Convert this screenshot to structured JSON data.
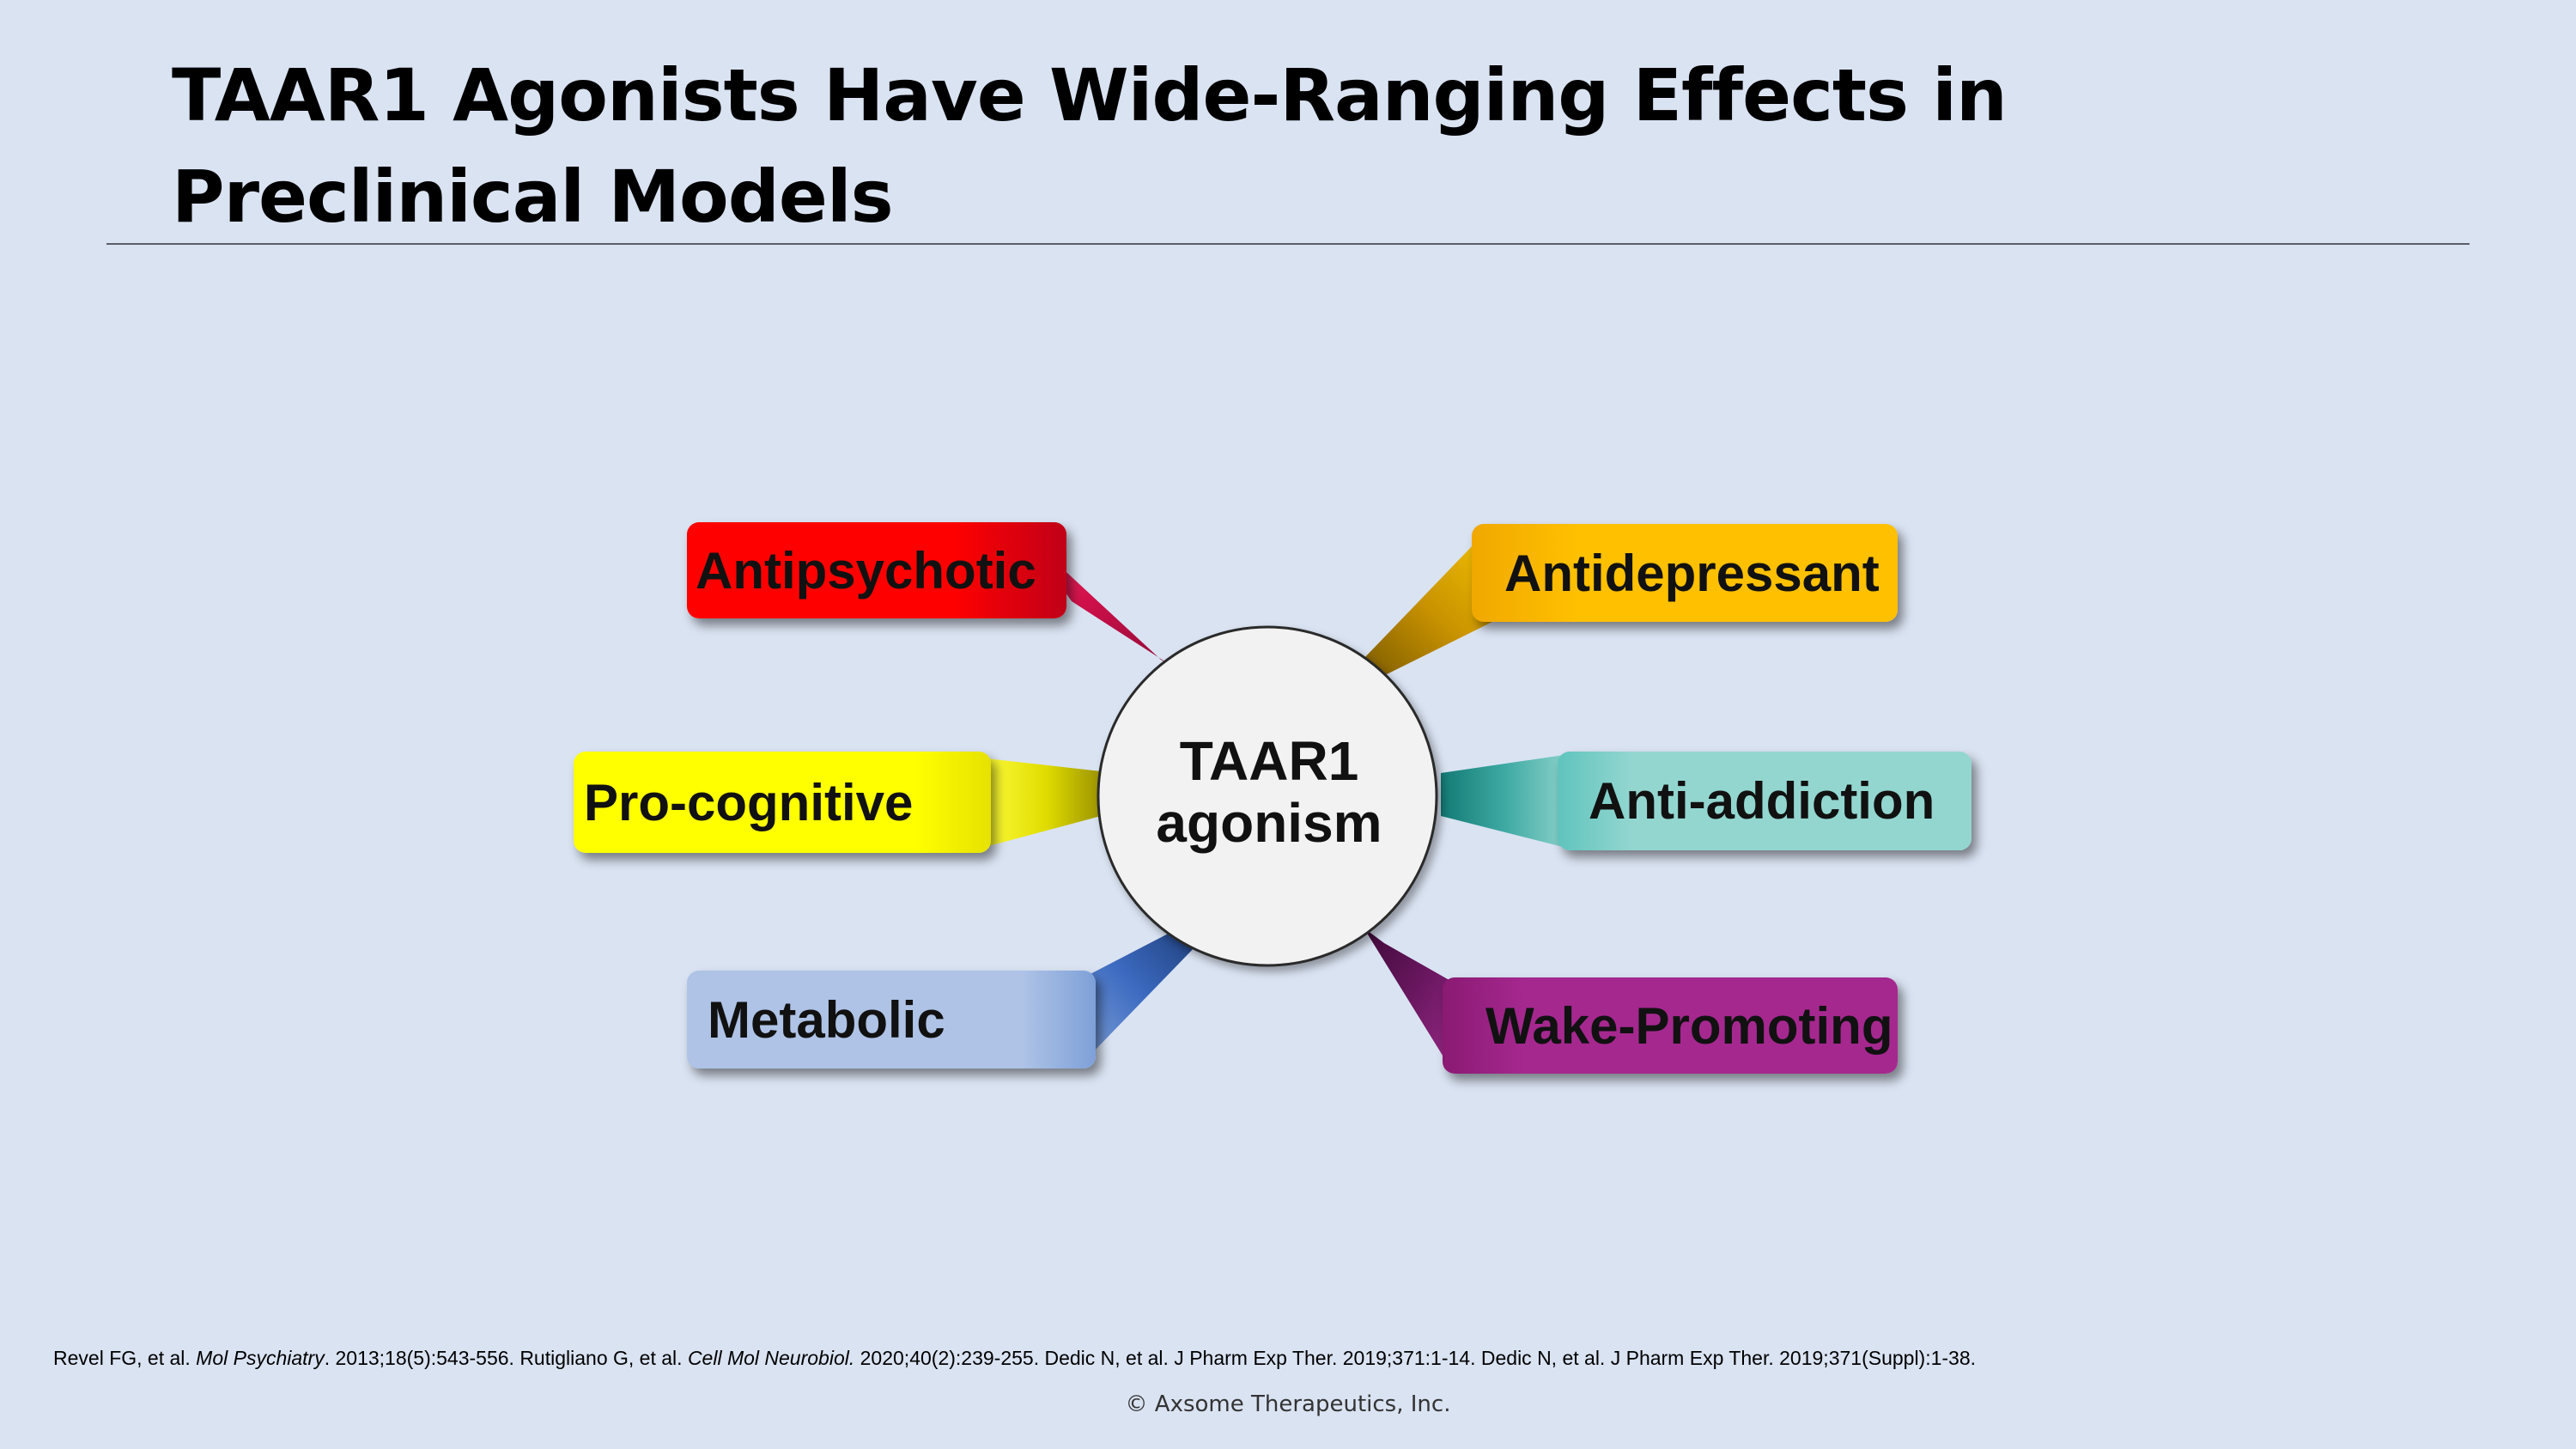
{
  "slide": {
    "title_line1": "TAAR1 Agonists Have Wide-Ranging Effects in",
    "title_line2": "Preclinical Models"
  },
  "diagram": {
    "center": {
      "line1": "TAAR1",
      "line2": "agonism"
    },
    "effects": [
      {
        "label": "Antipsychotic",
        "color": "#ff0000"
      },
      {
        "label": "Antidepressant",
        "color": "#ffc000"
      },
      {
        "label": "Pro-cognitive",
        "color": "#ffff00"
      },
      {
        "label": "Anti-addiction",
        "color": "#93d6d0"
      },
      {
        "label": "Metabolic",
        "color": "#aec3e6"
      },
      {
        "label": "Wake-Promoting",
        "color": "#a5288f"
      }
    ]
  },
  "references": {
    "r1_authors": "Revel FG, et al. ",
    "r1_journal": "Mol Psychiatry",
    "r1_details": ". 2013;18(5):543-556. Rutigliano G, et al. ",
    "r2_journal": "Cell Mol Neurobiol.",
    "r2_details": " 2020;40(2):239-255. Dedic N, et al. J Pharm Exp Ther.  2019;371:1-14. Dedic N, et al. J Pharm Exp Ther.  2019;371(Suppl):1-38."
  },
  "footer": {
    "copyright": "© Axsome Therapeutics, Inc."
  }
}
